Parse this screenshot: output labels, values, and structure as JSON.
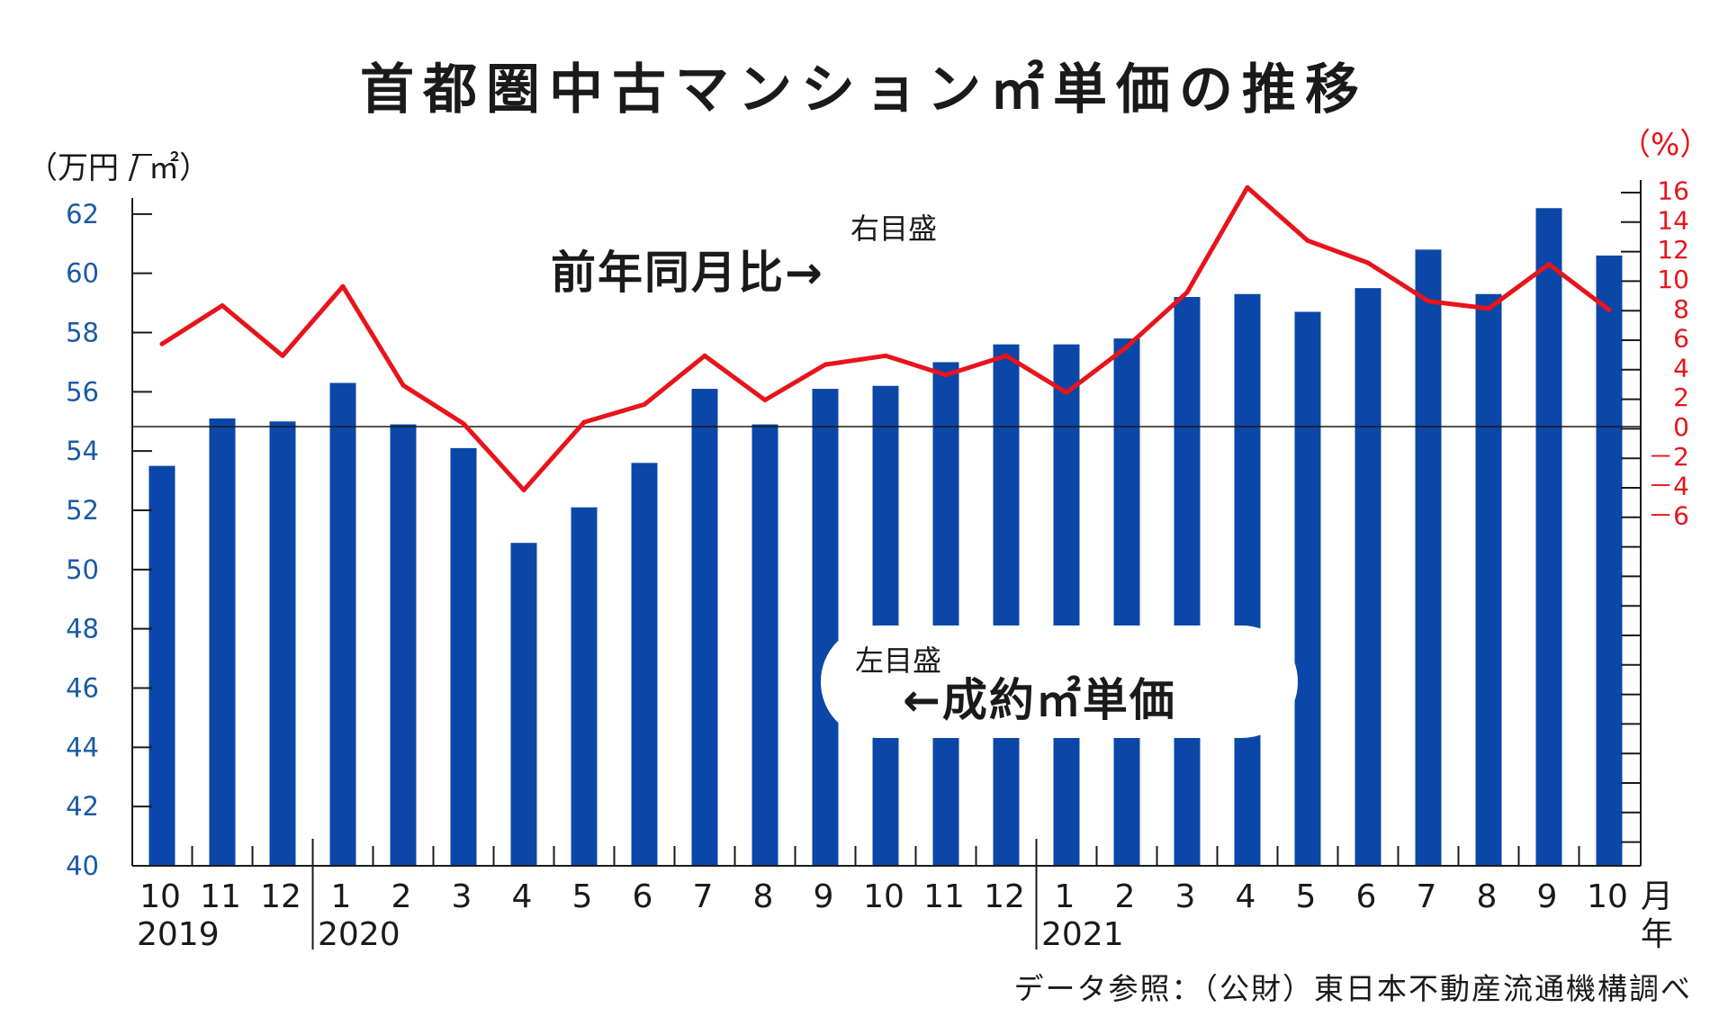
{
  "chart_data": {
    "type": "bar+line",
    "title": "首都圏中古マンション㎡単価の推移",
    "left_axis": {
      "unit": "（万円 / ㎡）",
      "range": [
        40,
        64
      ],
      "ticks": [
        "62",
        "60",
        "58",
        "56",
        "54",
        "52",
        "50",
        "48",
        "46",
        "44",
        "42",
        "40"
      ],
      "color": "#0b47a8"
    },
    "right_axis": {
      "unit": "（%）",
      "range": [
        -30,
        16
      ],
      "ticks": [
        "16",
        "14",
        "12",
        "10",
        "8",
        "6",
        "4",
        "2",
        "0",
        "－2",
        "－4",
        "－6"
      ],
      "color": "#e8141b"
    },
    "x_unit_month": "月",
    "x_unit_year": "年",
    "categories": [
      "10",
      "11",
      "12",
      "1",
      "2",
      "3",
      "4",
      "5",
      "6",
      "7",
      "8",
      "9",
      "10",
      "11",
      "12",
      "1",
      "2",
      "3",
      "4",
      "5",
      "6",
      "7",
      "8",
      "9",
      "10"
    ],
    "years": [
      {
        "label": "2019",
        "start_index": 0
      },
      {
        "label": "2020",
        "start_index": 3
      },
      {
        "label": "2021",
        "start_index": 15
      }
    ],
    "series": [
      {
        "name": "成約㎡単価",
        "type": "bar",
        "axis": "left",
        "values": [
          53.5,
          55.1,
          55.0,
          56.3,
          54.9,
          54.1,
          50.9,
          52.1,
          53.6,
          56.1,
          54.9,
          56.1,
          56.2,
          57.0,
          57.6,
          57.6,
          57.8,
          59.2,
          59.3,
          58.7,
          59.5,
          60.8,
          59.3,
          62.2,
          60.6
        ]
      },
      {
        "name": "前年同月比",
        "type": "line",
        "axis": "right",
        "values": [
          5.6,
          8.2,
          4.8,
          9.5,
          2.8,
          0.2,
          -4.3,
          0.3,
          1.5,
          4.8,
          1.8,
          4.2,
          4.8,
          3.5,
          4.8,
          2.3,
          5.4,
          9.1,
          16.2,
          12.6,
          11.1,
          8.5,
          8.0,
          11.0,
          7.9
        ]
      }
    ],
    "annotations": {
      "right_scale_note": "右目盛",
      "line_label": "前年同月比→",
      "left_scale_note": "左目盛",
      "bar_label": "←成約㎡単価"
    },
    "colors": {
      "bar": "#0b47a8",
      "line": "#e8141b"
    },
    "grid": false
  },
  "source": "データ参照：（公財）東日本不動産流通機構調べ"
}
